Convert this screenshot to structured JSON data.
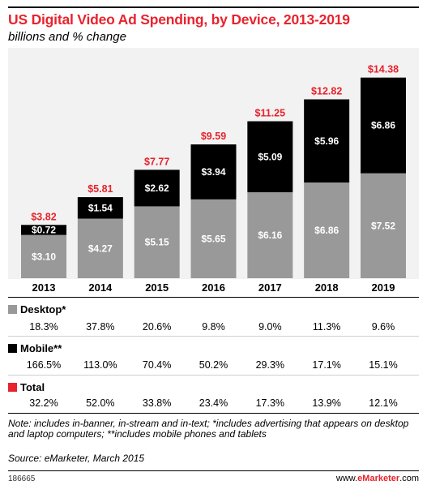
{
  "title": "US Digital Video Ad Spending, by Device, 2013-2019",
  "subtitle": "billions and % change",
  "chart_data": {
    "type": "bar",
    "stacked": true,
    "categories": [
      "2013",
      "2014",
      "2015",
      "2016",
      "2017",
      "2018",
      "2019"
    ],
    "series": [
      {
        "name": "Desktop*",
        "values": [
          3.1,
          4.27,
          5.15,
          5.65,
          6.16,
          6.86,
          7.52
        ],
        "labels": [
          "$3.10",
          "$4.27",
          "$5.15",
          "$5.65",
          "$6.16",
          "$6.86",
          "$7.52"
        ],
        "color": "#999999",
        "label_color": "#ffffff"
      },
      {
        "name": "Mobile**",
        "values": [
          0.72,
          1.54,
          2.62,
          3.94,
          5.09,
          5.96,
          6.86
        ],
        "labels": [
          "$0.72",
          "$1.54",
          "$2.62",
          "$3.94",
          "$5.09",
          "$5.96",
          "$6.86"
        ],
        "color": "#000000",
        "label_color": "#ffffff"
      }
    ],
    "totals": [
      3.82,
      5.81,
      7.77,
      9.59,
      11.25,
      12.82,
      14.38
    ],
    "total_labels": [
      "$3.82",
      "$5.81",
      "$7.77",
      "$9.59",
      "$11.25",
      "$12.82",
      "$14.38"
    ],
    "total_color": "#e8232d",
    "ylim": [
      0,
      15
    ]
  },
  "change_table": [
    {
      "name": "Desktop*",
      "color": "#999999",
      "values": [
        "18.3%",
        "37.8%",
        "20.6%",
        "9.8%",
        "9.0%",
        "11.3%",
        "9.6%"
      ]
    },
    {
      "name": "Mobile**",
      "color": "#000000",
      "values": [
        "166.5%",
        "113.0%",
        "70.4%",
        "50.2%",
        "29.3%",
        "17.1%",
        "15.1%"
      ]
    },
    {
      "name": "Total",
      "color": "#e8232d",
      "values": [
        "32.2%",
        "52.0%",
        "33.8%",
        "23.4%",
        "17.3%",
        "13.9%",
        "12.1%"
      ]
    }
  ],
  "note": "Note: includes in-banner, in-stream and in-text; *includes advertising that appears on desktop and laptop computers; **includes mobile phones and tablets",
  "source": "Source: eMarketer, March 2015",
  "chart_id": "186665",
  "brand": {
    "prefix": "www.",
    "name": "eMarketer",
    "suffix": ".com"
  }
}
